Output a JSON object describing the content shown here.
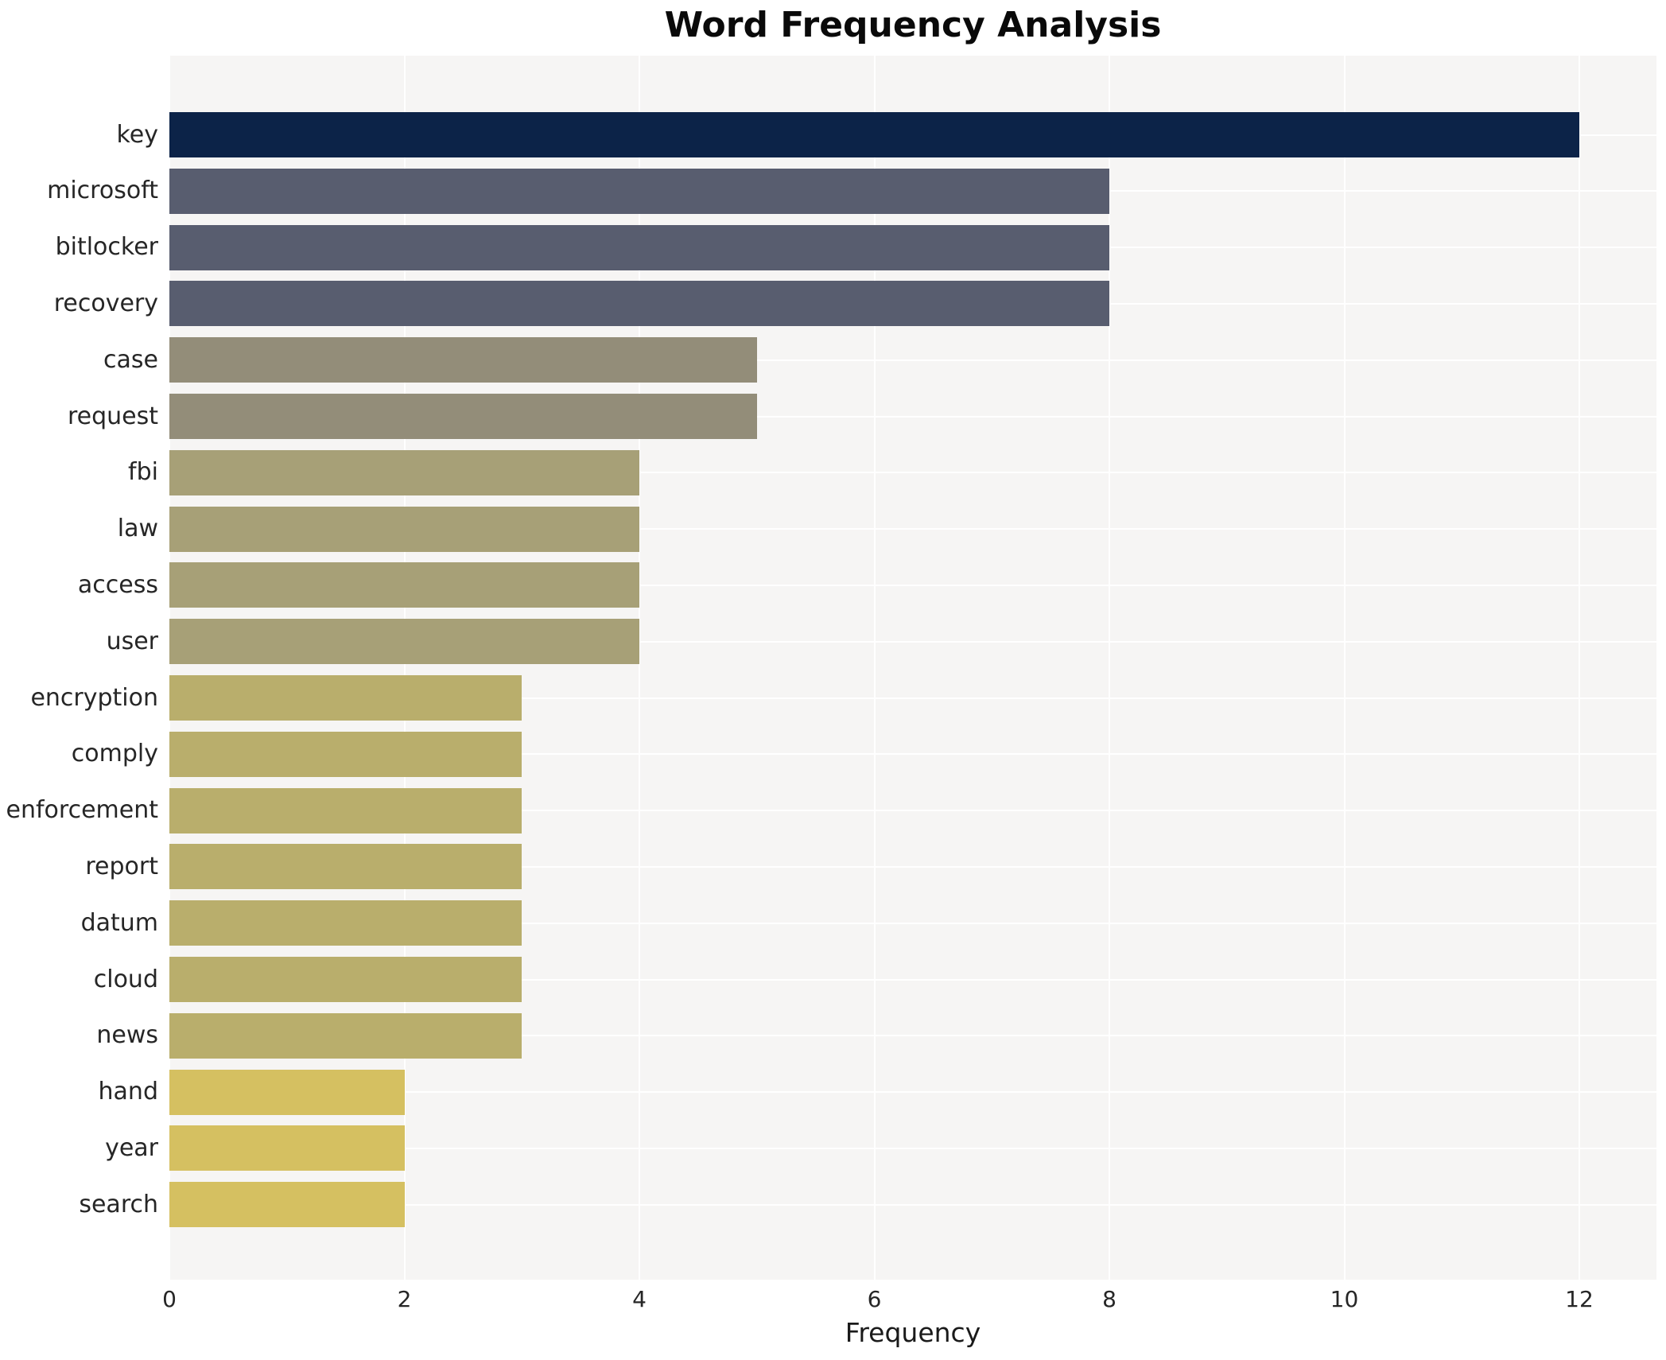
{
  "chart_data": {
    "type": "bar",
    "orientation": "horizontal",
    "title": "Word Frequency Analysis",
    "xlabel": "Frequency",
    "categories": [
      "key",
      "microsoft",
      "bitlocker",
      "recovery",
      "case",
      "request",
      "fbi",
      "law",
      "access",
      "user",
      "encryption",
      "comply",
      "enforcement",
      "report",
      "datum",
      "cloud",
      "news",
      "hand",
      "year",
      "search"
    ],
    "values": [
      12,
      8,
      8,
      8,
      5,
      5,
      4,
      4,
      4,
      4,
      3,
      3,
      3,
      3,
      3,
      3,
      3,
      2,
      2,
      2
    ],
    "xticks": [
      0,
      2,
      4,
      6,
      8,
      10,
      12
    ],
    "xlim": [
      0,
      12.65
    ],
    "grid": true,
    "legend_position": "none",
    "bar_colors": [
      "#0c2348",
      "#585d6f",
      "#585d6f",
      "#585d6f",
      "#938d79",
      "#938d79",
      "#a7a077",
      "#a7a077",
      "#a7a077",
      "#a7a077",
      "#b9ae6c",
      "#b9ae6c",
      "#b9ae6c",
      "#b9ae6c",
      "#b9ae6c",
      "#b9ae6c",
      "#b9ae6c",
      "#d5c061",
      "#d5c061",
      "#d5c061"
    ],
    "value_color_map": {
      "12": "#0c2348",
      "8": "#585d6f",
      "5": "#938d79",
      "4": "#a7a077",
      "3": "#b9ae6c",
      "2": "#d5c061"
    }
  },
  "colors": {
    "page_bg": "#ffffff",
    "plot_bg": "#f6f5f4",
    "grid": "#ffffff",
    "tick_text": "#262626",
    "title_text": "#0a0a0a"
  }
}
